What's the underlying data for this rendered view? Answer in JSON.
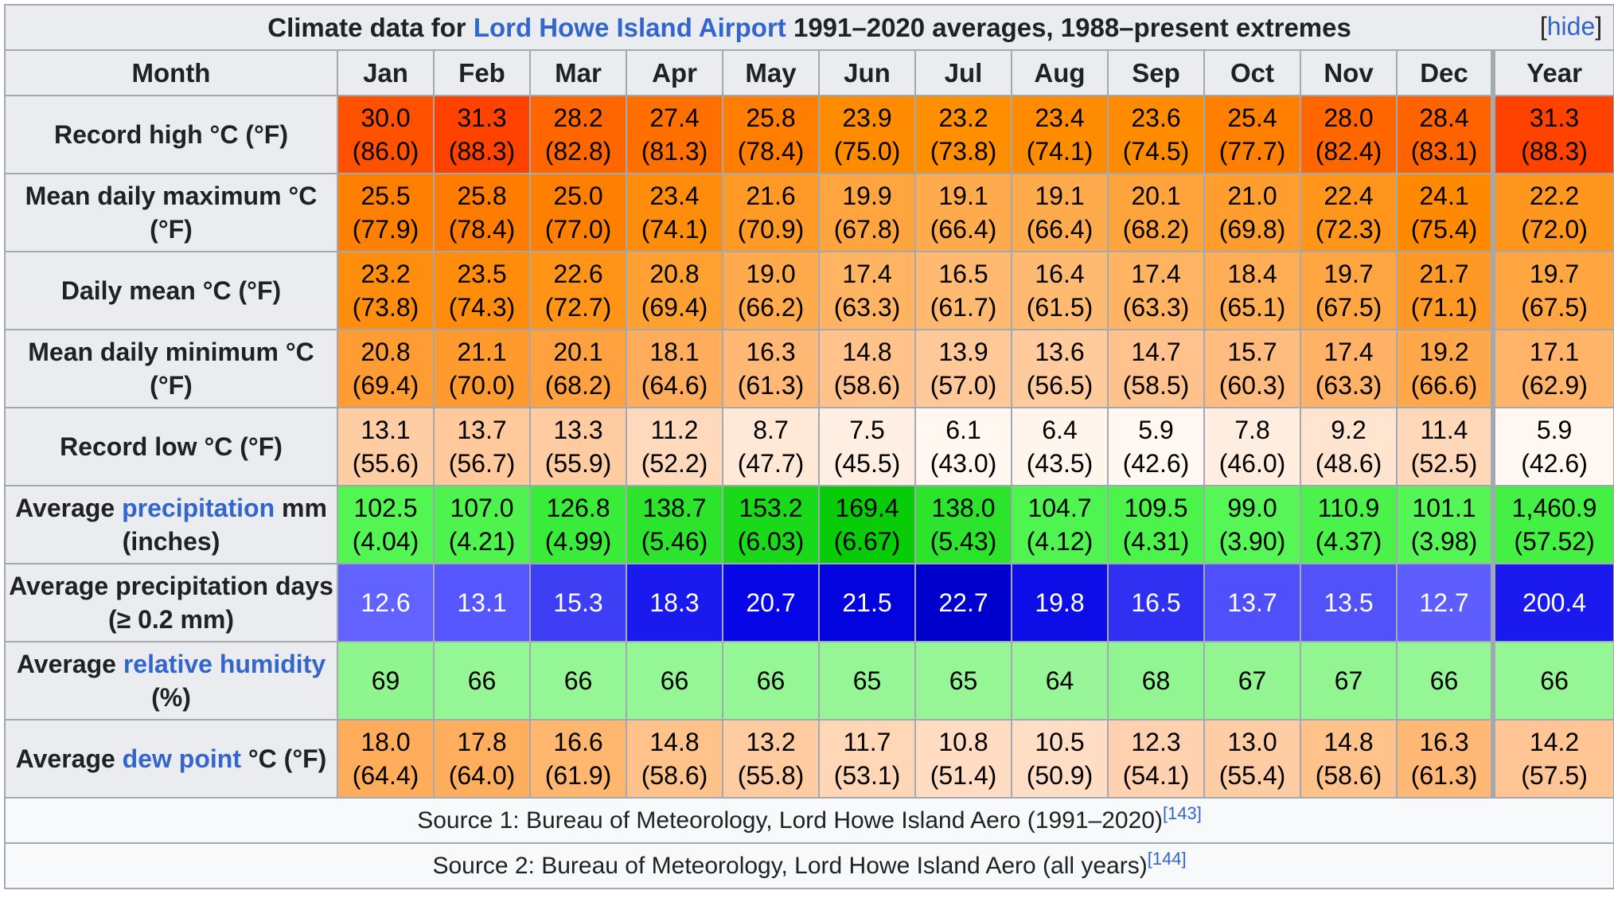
{
  "caption": {
    "prefix": "Climate data for ",
    "link": "Lord Howe Island Airport",
    "suffix": " 1991–2020 averages, 1988–present extremes",
    "hide_label": "hide"
  },
  "header": [
    "Month",
    "Jan",
    "Feb",
    "Mar",
    "Apr",
    "May",
    "Jun",
    "Jul",
    "Aug",
    "Sep",
    "Oct",
    "Nov",
    "Dec",
    "Year"
  ],
  "rows": [
    {
      "label_parts": [
        {
          "text": "Record high °C (°F)"
        }
      ],
      "cells": [
        {
          "c": "30.0",
          "f": "(86.0)",
          "bg": "#ff5100",
          "fg": "#000000"
        },
        {
          "c": "31.3",
          "f": "(88.3)",
          "bg": "#ff4200",
          "fg": "#000000"
        },
        {
          "c": "28.2",
          "f": "(82.8)",
          "bg": "#ff6600",
          "fg": "#000000"
        },
        {
          "c": "27.4",
          "f": "(81.3)",
          "bg": "#ff7000",
          "fg": "#000000"
        },
        {
          "c": "25.8",
          "f": "(78.4)",
          "bg": "#ff7d00",
          "fg": "#000000"
        },
        {
          "c": "23.9",
          "f": "(75.0)",
          "bg": "#ff8c00",
          "fg": "#000000"
        },
        {
          "c": "23.2",
          "f": "(73.8)",
          "bg": "#ff8e00",
          "fg": "#000000"
        },
        {
          "c": "23.4",
          "f": "(74.1)",
          "bg": "#ff8c00",
          "fg": "#000000"
        },
        {
          "c": "23.6",
          "f": "(74.5)",
          "bg": "#ff8c00",
          "fg": "#000000"
        },
        {
          "c": "25.4",
          "f": "(77.7)",
          "bg": "#ff7f00",
          "fg": "#000000"
        },
        {
          "c": "28.0",
          "f": "(82.4)",
          "bg": "#ff6600",
          "fg": "#000000"
        },
        {
          "c": "28.4",
          "f": "(83.1)",
          "bg": "#ff6300",
          "fg": "#000000"
        },
        {
          "c": "31.3",
          "f": "(88.3)",
          "bg": "#ff4200",
          "fg": "#000000"
        }
      ]
    },
    {
      "label_parts": [
        {
          "text": "Mean daily maximum °C (°F)"
        }
      ],
      "cells": [
        {
          "c": "25.5",
          "f": "(77.9)",
          "bg": "#ff7f00",
          "fg": "#000000"
        },
        {
          "c": "25.8",
          "f": "(78.4)",
          "bg": "#ff7c00",
          "fg": "#000000"
        },
        {
          "c": "25.0",
          "f": "(77.0)",
          "bg": "#ff8000",
          "fg": "#000000"
        },
        {
          "c": "23.4",
          "f": "(74.1)",
          "bg": "#ff8d0c",
          "fg": "#000000"
        },
        {
          "c": "21.6",
          "f": "(70.9)",
          "bg": "#ff9a26",
          "fg": "#000000"
        },
        {
          "c": "19.9",
          "f": "(67.8)",
          "bg": "#ffa540",
          "fg": "#000000"
        },
        {
          "c": "19.1",
          "f": "(66.4)",
          "bg": "#ffaa4d",
          "fg": "#000000"
        },
        {
          "c": "19.1",
          "f": "(66.4)",
          "bg": "#ffaa4d",
          "fg": "#000000"
        },
        {
          "c": "20.1",
          "f": "(68.2)",
          "bg": "#ffa43d",
          "fg": "#000000"
        },
        {
          "c": "21.0",
          "f": "(69.8)",
          "bg": "#ff9e2f",
          "fg": "#000000"
        },
        {
          "c": "22.4",
          "f": "(72.3)",
          "bg": "#ff951a",
          "fg": "#000000"
        },
        {
          "c": "24.1",
          "f": "(75.4)",
          "bg": "#ff8900",
          "fg": "#000000"
        },
        {
          "c": "22.2",
          "f": "(72.0)",
          "bg": "#ff961d",
          "fg": "#000000"
        }
      ]
    },
    {
      "label_parts": [
        {
          "text": "Daily mean °C (°F)"
        }
      ],
      "cells": [
        {
          "c": "23.2",
          "f": "(73.8)",
          "bg": "#ff8e0f",
          "fg": "#000000"
        },
        {
          "c": "23.5",
          "f": "(74.3)",
          "bg": "#ff8d0b",
          "fg": "#000000"
        },
        {
          "c": "22.6",
          "f": "(72.7)",
          "bg": "#ff9417",
          "fg": "#000000"
        },
        {
          "c": "20.8",
          "f": "(69.4)",
          "bg": "#ffa033",
          "fg": "#000000"
        },
        {
          "c": "19.0",
          "f": "(66.2)",
          "bg": "#ffab4d",
          "fg": "#000000"
        },
        {
          "c": "17.4",
          "f": "(63.3)",
          "bg": "#ffb463",
          "fg": "#000000"
        },
        {
          "c": "16.5",
          "f": "(61.7)",
          "bg": "#ffb970",
          "fg": "#000000"
        },
        {
          "c": "16.4",
          "f": "(61.5)",
          "bg": "#ffba72",
          "fg": "#000000"
        },
        {
          "c": "17.4",
          "f": "(63.3)",
          "bg": "#ffb463",
          "fg": "#000000"
        },
        {
          "c": "18.4",
          "f": "(65.1)",
          "bg": "#ffae55",
          "fg": "#000000"
        },
        {
          "c": "19.7",
          "f": "(67.5)",
          "bg": "#ffa643",
          "fg": "#000000"
        },
        {
          "c": "21.7",
          "f": "(71.1)",
          "bg": "#ff9926",
          "fg": "#000000"
        },
        {
          "c": "19.7",
          "f": "(67.5)",
          "bg": "#ffa643",
          "fg": "#000000"
        }
      ]
    },
    {
      "label_parts": [
        {
          "text": "Mean daily minimum °C (°F)"
        }
      ],
      "cells": [
        {
          "c": "20.8",
          "f": "(69.4)",
          "bg": "#ff9c33",
          "fg": "#000000"
        },
        {
          "c": "21.1",
          "f": "(70.0)",
          "bg": "#ff9a2f",
          "fg": "#000000"
        },
        {
          "c": "20.1",
          "f": "(68.2)",
          "bg": "#ffa13e",
          "fg": "#000000"
        },
        {
          "c": "18.1",
          "f": "(64.6)",
          "bg": "#ffad5c",
          "fg": "#000000"
        },
        {
          "c": "16.3",
          "f": "(61.3)",
          "bg": "#ffb876",
          "fg": "#000000"
        },
        {
          "c": "14.8",
          "f": "(58.6)",
          "bg": "#ffc28b",
          "fg": "#000000"
        },
        {
          "c": "13.9",
          "f": "(57.0)",
          "bg": "#ffc898",
          "fg": "#000000"
        },
        {
          "c": "13.6",
          "f": "(56.5)",
          "bg": "#ffca9c",
          "fg": "#000000"
        },
        {
          "c": "14.7",
          "f": "(58.5)",
          "bg": "#ffc28c",
          "fg": "#000000"
        },
        {
          "c": "15.7",
          "f": "(60.3)",
          "bg": "#ffbc7e",
          "fg": "#000000"
        },
        {
          "c": "17.4",
          "f": "(63.3)",
          "bg": "#ffb265",
          "fg": "#000000"
        },
        {
          "c": "19.2",
          "f": "(66.6)",
          "bg": "#ffa74b",
          "fg": "#000000"
        },
        {
          "c": "17.1",
          "f": "(62.9)",
          "bg": "#ffb469",
          "fg": "#000000"
        }
      ]
    },
    {
      "label_parts": [
        {
          "text": "Record low °C (°F)"
        }
      ],
      "cells": [
        {
          "c": "13.1",
          "f": "(55.6)",
          "bg": "#ffcda4",
          "fg": "#000000"
        },
        {
          "c": "13.7",
          "f": "(56.7)",
          "bg": "#ffc99b",
          "fg": "#000000"
        },
        {
          "c": "13.3",
          "f": "(55.9)",
          "bg": "#ffcca1",
          "fg": "#000000"
        },
        {
          "c": "11.2",
          "f": "(52.2)",
          "bg": "#ffd9bb",
          "fg": "#000000"
        },
        {
          "c": "8.7",
          "f": "(47.7)",
          "bg": "#ffe8d6",
          "fg": "#000000"
        },
        {
          "c": "7.5",
          "f": "(45.5)",
          "bg": "#ffefe2",
          "fg": "#000000"
        },
        {
          "c": "6.1",
          "f": "(43.0)",
          "bg": "#fff7f0",
          "fg": "#000000"
        },
        {
          "c": "6.4",
          "f": "(43.5)",
          "bg": "#fff5ed",
          "fg": "#000000"
        },
        {
          "c": "5.9",
          "f": "(42.6)",
          "bg": "#fff8f2",
          "fg": "#000000"
        },
        {
          "c": "7.8",
          "f": "(46.0)",
          "bg": "#ffede0",
          "fg": "#000000"
        },
        {
          "c": "9.2",
          "f": "(48.6)",
          "bg": "#ffe5d0",
          "fg": "#000000"
        },
        {
          "c": "11.4",
          "f": "(52.5)",
          "bg": "#ffd8b9",
          "fg": "#000000"
        },
        {
          "c": "5.9",
          "f": "(42.6)",
          "bg": "#fff8f2",
          "fg": "#000000"
        }
      ]
    },
    {
      "label_parts": [
        {
          "text": "Average "
        },
        {
          "text": "precipitation",
          "link": true
        },
        {
          "text": " mm (inches)"
        }
      ],
      "cells": [
        {
          "c": "102.5",
          "f": "(4.04)",
          "bg": "#53f553",
          "fg": "#000000"
        },
        {
          "c": "107.0",
          "f": "(4.21)",
          "bg": "#4ef34e",
          "fg": "#000000"
        },
        {
          "c": "126.8",
          "f": "(4.99)",
          "bg": "#3aec3a",
          "fg": "#000000"
        },
        {
          "c": "138.7",
          "f": "(5.46)",
          "bg": "#2be42b",
          "fg": "#000000"
        },
        {
          "c": "153.2",
          "f": "(6.03)",
          "bg": "#1ad81a",
          "fg": "#000000"
        },
        {
          "c": "169.4",
          "f": "(6.67)",
          "bg": "#08cc08",
          "fg": "#000000"
        },
        {
          "c": "138.0",
          "f": "(5.43)",
          "bg": "#2be42b",
          "fg": "#000000"
        },
        {
          "c": "104.7",
          "f": "(4.12)",
          "bg": "#50f450",
          "fg": "#000000"
        },
        {
          "c": "109.5",
          "f": "(4.31)",
          "bg": "#4bf34b",
          "fg": "#000000"
        },
        {
          "c": "99.0",
          "f": "(3.90)",
          "bg": "#56f656",
          "fg": "#000000"
        },
        {
          "c": "110.9",
          "f": "(4.37)",
          "bg": "#4af24a",
          "fg": "#000000"
        },
        {
          "c": "101.1",
          "f": "(3.98)",
          "bg": "#54f554",
          "fg": "#000000"
        },
        {
          "c": "1,460.9",
          "f": "(57.52)",
          "bg": "#45f045",
          "fg": "#000000"
        }
      ]
    },
    {
      "label_parts": [
        {
          "text": "Average precipitation days (≥ 0.2 mm)",
          "small_tail": true
        }
      ],
      "cells": [
        {
          "c": "12.6",
          "bg": "#6262ff",
          "fg": "#ffffff"
        },
        {
          "c": "13.1",
          "bg": "#5656ff",
          "fg": "#ffffff"
        },
        {
          "c": "15.3",
          "bg": "#3e3ef5",
          "fg": "#ffffff"
        },
        {
          "c": "18.3",
          "bg": "#1a1aef",
          "fg": "#ffffff"
        },
        {
          "c": "20.7",
          "bg": "#0606e6",
          "fg": "#ffffff"
        },
        {
          "c": "21.5",
          "bg": "#0303dd",
          "fg": "#ffffff"
        },
        {
          "c": "22.7",
          "bg": "#0000cc",
          "fg": "#ffffff"
        },
        {
          "c": "19.8",
          "bg": "#0d0de8",
          "fg": "#ffffff"
        },
        {
          "c": "16.5",
          "bg": "#3030f2",
          "fg": "#ffffff"
        },
        {
          "c": "13.7",
          "bg": "#4f4ffb",
          "fg": "#ffffff"
        },
        {
          "c": "13.5",
          "bg": "#5252fb",
          "fg": "#ffffff"
        },
        {
          "c": "12.7",
          "bg": "#5e5eff",
          "fg": "#ffffff"
        },
        {
          "c": "200.4",
          "bg": "#1a1aef",
          "fg": "#ffffff"
        }
      ]
    },
    {
      "label_parts": [
        {
          "text": "Average "
        },
        {
          "text": "relative humidity",
          "link": true
        },
        {
          "text": " (%)"
        }
      ],
      "cells": [
        {
          "c": "69",
          "bg": "#8ff58f",
          "fg": "#000000"
        },
        {
          "c": "66",
          "bg": "#94f694",
          "fg": "#000000"
        },
        {
          "c": "66",
          "bg": "#94f694",
          "fg": "#000000"
        },
        {
          "c": "66",
          "bg": "#94f694",
          "fg": "#000000"
        },
        {
          "c": "66",
          "bg": "#94f694",
          "fg": "#000000"
        },
        {
          "c": "65",
          "bg": "#96f696",
          "fg": "#000000"
        },
        {
          "c": "65",
          "bg": "#96f696",
          "fg": "#000000"
        },
        {
          "c": "64",
          "bg": "#98f698",
          "fg": "#000000"
        },
        {
          "c": "68",
          "bg": "#91f591",
          "fg": "#000000"
        },
        {
          "c": "67",
          "bg": "#92f592",
          "fg": "#000000"
        },
        {
          "c": "67",
          "bg": "#92f592",
          "fg": "#000000"
        },
        {
          "c": "66",
          "bg": "#94f694",
          "fg": "#000000"
        },
        {
          "c": "66",
          "bg": "#94f694",
          "fg": "#000000"
        }
      ]
    },
    {
      "label_parts": [
        {
          "text": "Average "
        },
        {
          "text": "dew point",
          "link": true
        },
        {
          "text": " °C (°F)"
        }
      ],
      "cells": [
        {
          "c": "18.0",
          "f": "(64.4)",
          "bg": "#ffad5a",
          "fg": "#000000"
        },
        {
          "c": "17.8",
          "f": "(64.0)",
          "bg": "#ffae5d",
          "fg": "#000000"
        },
        {
          "c": "16.6",
          "f": "(61.9)",
          "bg": "#ffb66f",
          "fg": "#000000"
        },
        {
          "c": "14.8",
          "f": "(58.6)",
          "bg": "#ffc28b",
          "fg": "#000000"
        },
        {
          "c": "13.2",
          "f": "(55.8)",
          "bg": "#ffcca2",
          "fg": "#000000"
        },
        {
          "c": "11.7",
          "f": "(53.1)",
          "bg": "#ffd6b6",
          "fg": "#000000"
        },
        {
          "c": "10.8",
          "f": "(51.4)",
          "bg": "#ffdcc2",
          "fg": "#000000"
        },
        {
          "c": "10.5",
          "f": "(50.9)",
          "bg": "#ffdec5",
          "fg": "#000000"
        },
        {
          "c": "12.3",
          "f": "(54.1)",
          "bg": "#ffd1ae",
          "fg": "#000000"
        },
        {
          "c": "13.0",
          "f": "(55.4)",
          "bg": "#ffcda4",
          "fg": "#000000"
        },
        {
          "c": "14.8",
          "f": "(58.6)",
          "bg": "#ffc28b",
          "fg": "#000000"
        },
        {
          "c": "16.3",
          "f": "(61.3)",
          "bg": "#ffb876",
          "fg": "#000000"
        },
        {
          "c": "14.2",
          "f": "(57.5)",
          "bg": "#ffc594",
          "fg": "#000000"
        }
      ]
    }
  ],
  "sources": [
    {
      "text": "Source 1: Bureau of Meteorology, Lord Howe Island Aero (1991–2020)",
      "ref": "[143]"
    },
    {
      "text": "Source 2: Bureau of Meteorology, Lord Howe Island Aero (all years)",
      "ref": "[144]"
    }
  ]
}
